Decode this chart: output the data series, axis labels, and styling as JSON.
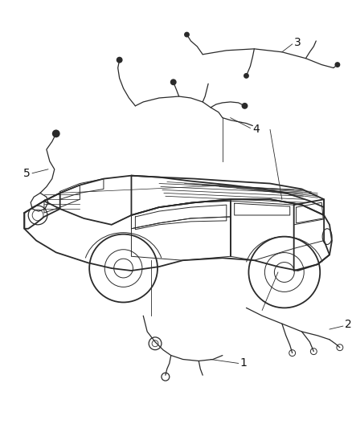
{
  "bg_color": "#ffffff",
  "line_color": "#2a2a2a",
  "label_color": "#111111",
  "fig_width": 4.38,
  "fig_height": 5.33,
  "dpi": 100,
  "label_fontsize": 10
}
